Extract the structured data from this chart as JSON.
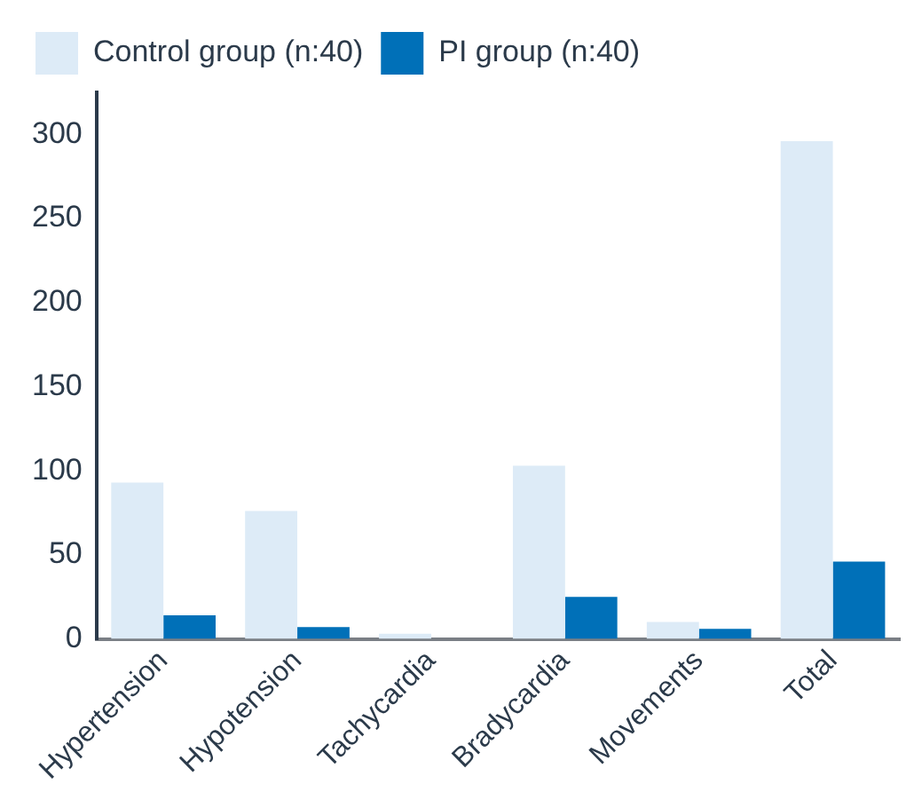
{
  "chart_data": {
    "type": "bar",
    "categories": [
      "Hypertension",
      "Hypotension",
      "Tachycardia",
      "Bradycardia",
      "Movements",
      "Total"
    ],
    "series": [
      {
        "name": "Control group (n:40)",
        "color": "#ddebf7",
        "values": [
          93,
          76,
          3,
          103,
          10,
          296
        ]
      },
      {
        "name": "PI group (n:40)",
        "color": "#0070b8",
        "values": [
          14,
          7,
          0,
          25,
          6,
          46
        ]
      }
    ],
    "ylim": [
      0,
      325
    ],
    "yticks": [
      0,
      50,
      100,
      150,
      200,
      250,
      300
    ],
    "grid": false,
    "legend": "top left"
  }
}
